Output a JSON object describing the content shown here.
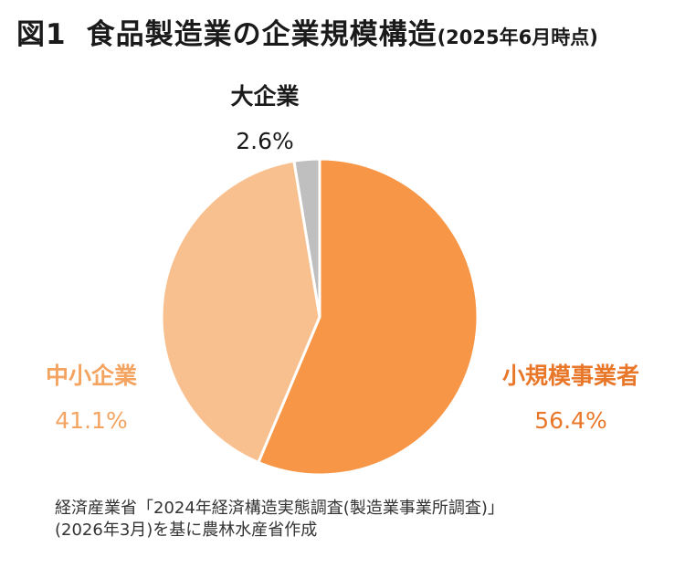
{
  "header": {
    "fig_label": "図1",
    "title": "食品製造業の企業規模構造",
    "date_note": "(2025年6月時点)"
  },
  "chart_data": {
    "type": "pie",
    "title": "食品製造業の企業規模構造",
    "slices": [
      {
        "name": "小規模事業者",
        "value": 56.4,
        "label": "56.4%",
        "color": "#f79646",
        "text_color": "#e9772a"
      },
      {
        "name": "中小企業",
        "value": 41.1,
        "label": "41.1%",
        "color": "#f9c08f",
        "text_color": "#f4a460"
      },
      {
        "name": "大企業",
        "value": 2.6,
        "label": "2.6%",
        "color": "#bfbfbf",
        "text_color": "#1a1a1a"
      }
    ]
  },
  "footnote": {
    "line1": "経済産業省「2024年経済構造実態調査(製造業事業所調査)」",
    "line2": "(2026年3月)を基に農林水産省作成"
  }
}
